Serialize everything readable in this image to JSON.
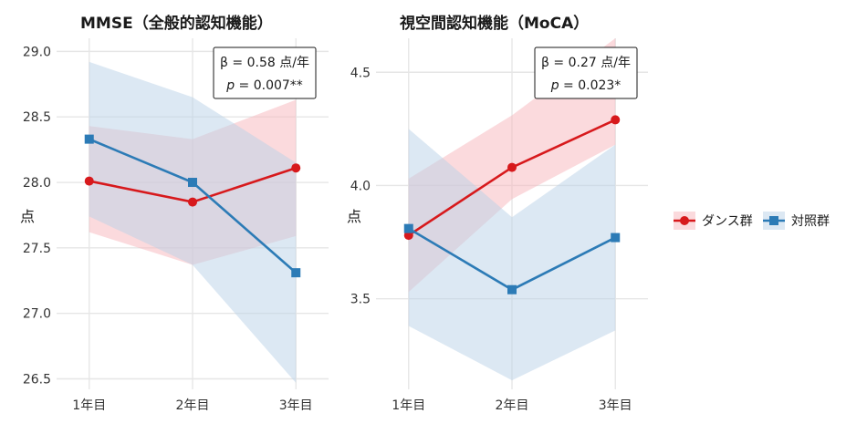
{
  "colors": {
    "dance": "#d7191c",
    "control": "#2c7bb6",
    "dance_band": "#f7b6bb",
    "control_band": "#b9d1e8",
    "grid": "#e6e6e6"
  },
  "legend": [
    {
      "key": "dance",
      "label": "ダンス群",
      "marker": "circle"
    },
    {
      "key": "control",
      "label": "対照群",
      "marker": "square"
    }
  ],
  "chart_data": [
    {
      "type": "line",
      "title": "MMSE（全般的認知機能）",
      "xlabel": "",
      "ylabel": "点",
      "categories": [
        "1年目",
        "2年目",
        "3年目"
      ],
      "ylim": [
        26.42,
        29.1
      ],
      "yticks": [
        26.5,
        27.0,
        27.5,
        28.0,
        28.5,
        29.0
      ],
      "ytick_labels": [
        "26.5",
        "27.0",
        "27.5",
        "28.0",
        "28.5",
        "29.0"
      ],
      "series": [
        {
          "key": "dance",
          "values": [
            28.01,
            27.85,
            28.11
          ],
          "lower": [
            27.62,
            27.37,
            27.59
          ],
          "upper": [
            28.43,
            28.33,
            28.63
          ]
        },
        {
          "key": "control",
          "values": [
            28.33,
            28.0,
            27.31
          ],
          "lower": [
            27.74,
            27.37,
            26.47
          ],
          "upper": [
            28.92,
            28.65,
            28.15
          ]
        }
      ],
      "annotation": {
        "beta": "β = 0.58 点/年",
        "p_symbol": "p",
        "p_value": " = 0.007**"
      }
    },
    {
      "type": "line",
      "title": "視空間認知機能（MoCA）",
      "xlabel": "",
      "ylabel": "点",
      "categories": [
        "1年目",
        "2年目",
        "3年目"
      ],
      "ylim": [
        3.1,
        4.65
      ],
      "yticks": [
        3.5,
        4.0,
        4.5
      ],
      "ytick_labels": [
        "3.5",
        "4.0",
        "4.5"
      ],
      "series": [
        {
          "key": "dance",
          "values": [
            3.78,
            4.08,
            4.29
          ],
          "lower": [
            3.53,
            3.94,
            4.18
          ],
          "upper": [
            4.03,
            4.31,
            4.65
          ]
        },
        {
          "key": "control",
          "values": [
            3.81,
            3.54,
            3.77
          ],
          "lower": [
            3.38,
            3.14,
            3.36
          ],
          "upper": [
            4.25,
            3.86,
            4.18
          ]
        }
      ],
      "annotation": {
        "beta": "β = 0.27 点/年",
        "p_symbol": "p",
        "p_value": " = 0.023*"
      }
    }
  ]
}
